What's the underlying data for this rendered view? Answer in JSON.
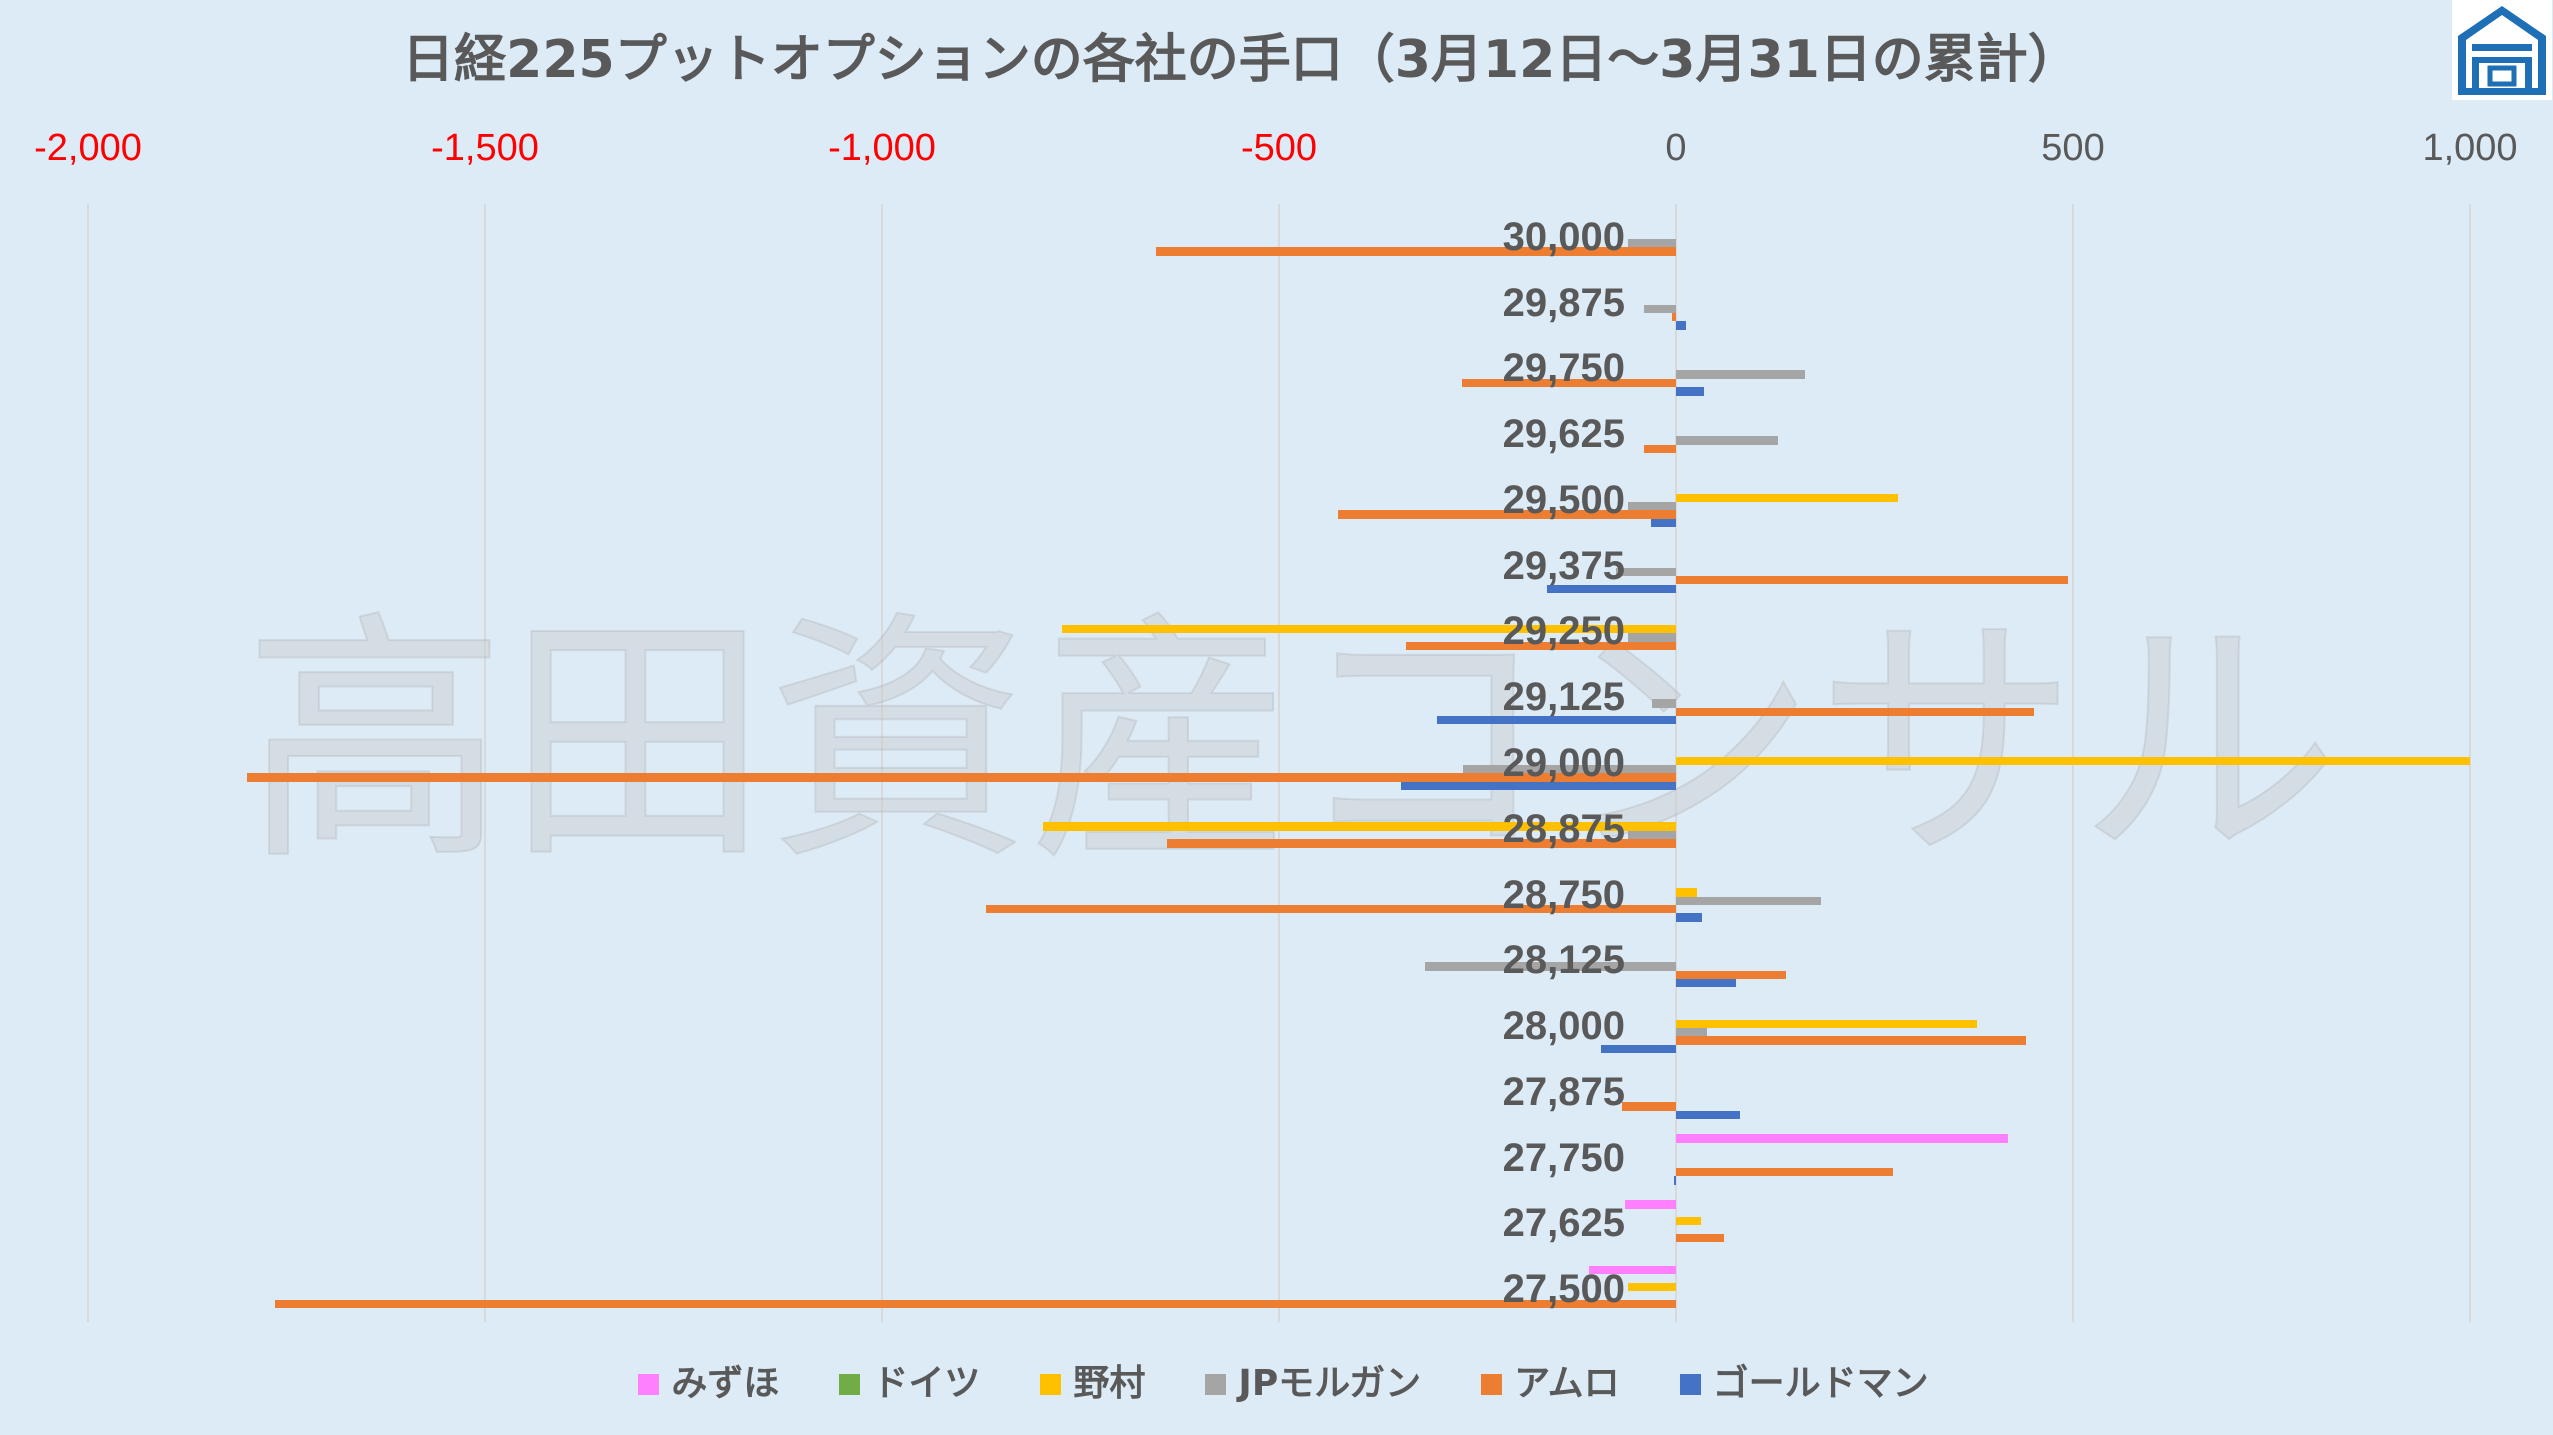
{
  "background": "#DDEBF7",
  "watermark": "高田資産コンサル",
  "logo": {
    "icon": "house-logo-icon",
    "color": "#1E6FB5"
  },
  "chart_data": {
    "type": "bar",
    "orientation": "horizontal",
    "title": "日経225プットオプションの各社の手口（3月12日～3月31日の累計）",
    "categories": [
      "30,000",
      "29,875",
      "29,750",
      "29,625",
      "29,500",
      "29,375",
      "29,250",
      "29,125",
      "29,000",
      "28,875",
      "28,750",
      "28,125",
      "28,000",
      "27,875",
      "27,750",
      "27,625",
      "27,500"
    ],
    "xlim": [
      -2000,
      1000
    ],
    "x_ticks": [
      -2000,
      -1500,
      -1000,
      -500,
      0,
      500,
      1000
    ],
    "x_tick_labels": [
      "-2,000",
      "-1,500",
      "-1,000",
      "-500",
      "0",
      "500",
      "1,000"
    ],
    "x_axis_position": "top",
    "tick_label_colors": {
      "negative": "#FF0000",
      "non_negative": "#595959"
    },
    "grid": true,
    "legend_position": "bottom",
    "series": [
      {
        "name": "みずほ",
        "color": "#FF80FF",
        "values": [
          null,
          null,
          null,
          null,
          null,
          null,
          null,
          null,
          null,
          null,
          null,
          null,
          null,
          null,
          418,
          -64,
          -109
        ]
      },
      {
        "name": "ドイツ",
        "color": "#70AD47",
        "values": [
          null,
          null,
          null,
          null,
          null,
          null,
          null,
          null,
          null,
          null,
          null,
          null,
          null,
          null,
          null,
          null,
          null
        ]
      },
      {
        "name": "野村",
        "color": "#FFC000",
        "values": [
          null,
          null,
          null,
          null,
          279,
          null,
          -773,
          null,
          1000,
          -797,
          27,
          null,
          379,
          null,
          null,
          31,
          -60
        ]
      },
      {
        "name": "JPモルガン",
        "color": "#A5A5A5",
        "values": [
          -60,
          -40,
          162,
          129,
          -60,
          -75,
          -60,
          -30,
          -268,
          -60,
          182,
          -316,
          39,
          null,
          null,
          null,
          null
        ]
      },
      {
        "name": "アムロ",
        "color": "#ED7D31",
        "values": [
          -655,
          -5,
          -270,
          -40,
          -426,
          494,
          -340,
          451,
          -1800,
          -641,
          -869,
          139,
          441,
          -68,
          273,
          61,
          -1764
        ]
      },
      {
        "name": "ゴールドマン",
        "color": "#4472C4",
        "values": [
          null,
          12,
          35,
          null,
          -31,
          -162,
          null,
          -301,
          -346,
          null,
          33,
          76,
          -94,
          80,
          -3,
          null,
          null
        ]
      }
    ]
  }
}
